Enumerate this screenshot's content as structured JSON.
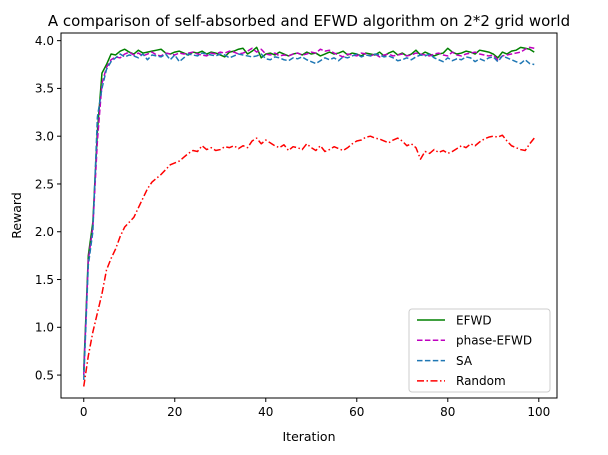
{
  "chart_data": {
    "type": "line",
    "title": "A comparison of self-absorbed and EFWD algorithm on 2*2 grid world",
    "xlabel": "Iteration",
    "ylabel": "Reward",
    "xlim": [
      -5,
      104
    ],
    "ylim": [
      0.26,
      4.08
    ],
    "xticks": [
      0,
      20,
      40,
      60,
      80,
      100
    ],
    "yticks": [
      0.5,
      1.0,
      1.5,
      2.0,
      2.5,
      3.0,
      3.5,
      4.0
    ],
    "xtick_labels": [
      "0",
      "20",
      "40",
      "60",
      "80",
      "100"
    ],
    "ytick_labels": [
      "0.5",
      "1.0",
      "1.5",
      "2.0",
      "2.5",
      "3.0",
      "3.5",
      "4.0"
    ],
    "grid": false,
    "legend_position": "lower-right",
    "x": [
      0,
      1,
      2,
      3,
      4,
      5,
      6,
      7,
      8,
      9,
      10,
      11,
      12,
      13,
      14,
      15,
      16,
      17,
      18,
      19,
      20,
      21,
      22,
      23,
      24,
      25,
      26,
      27,
      28,
      29,
      30,
      31,
      32,
      33,
      34,
      35,
      36,
      37,
      38,
      39,
      40,
      41,
      42,
      43,
      44,
      45,
      46,
      47,
      48,
      49,
      50,
      51,
      52,
      53,
      54,
      55,
      56,
      57,
      58,
      59,
      60,
      61,
      62,
      63,
      64,
      65,
      66,
      67,
      68,
      69,
      70,
      71,
      72,
      73,
      74,
      75,
      76,
      77,
      78,
      79,
      80,
      81,
      82,
      83,
      84,
      85,
      86,
      87,
      88,
      89,
      90,
      91,
      92,
      93,
      94,
      95,
      96,
      97,
      98,
      99
    ],
    "series": [
      {
        "name": "EFWD",
        "color": "#008000",
        "dash": "solid",
        "values": [
          0.55,
          1.75,
          2.1,
          3.05,
          3.66,
          3.75,
          3.86,
          3.85,
          3.89,
          3.91,
          3.88,
          3.86,
          3.9,
          3.87,
          3.88,
          3.89,
          3.9,
          3.91,
          3.87,
          3.86,
          3.88,
          3.89,
          3.87,
          3.85,
          3.88,
          3.87,
          3.89,
          3.86,
          3.88,
          3.87,
          3.85,
          3.83,
          3.88,
          3.89,
          3.91,
          3.92,
          3.86,
          3.89,
          3.93,
          3.82,
          3.86,
          3.87,
          3.85,
          3.88,
          3.86,
          3.84,
          3.86,
          3.87,
          3.85,
          3.88,
          3.86,
          3.87,
          3.84,
          3.86,
          3.88,
          3.86,
          3.87,
          3.89,
          3.85,
          3.87,
          3.86,
          3.84,
          3.87,
          3.86,
          3.85,
          3.88,
          3.84,
          3.87,
          3.89,
          3.85,
          3.87,
          3.84,
          3.86,
          3.9,
          3.85,
          3.88,
          3.86,
          3.84,
          3.86,
          3.87,
          3.92,
          3.88,
          3.86,
          3.87,
          3.89,
          3.88,
          3.86,
          3.9,
          3.89,
          3.88,
          3.86,
          3.82,
          3.88,
          3.86,
          3.89,
          3.9,
          3.93,
          3.92,
          3.91,
          3.88
        ]
      },
      {
        "name": "phase-EFWD",
        "color": "#bf00bf",
        "dash": "dashed",
        "values": [
          0.5,
          1.7,
          2.05,
          2.95,
          3.55,
          3.72,
          3.8,
          3.83,
          3.82,
          3.86,
          3.88,
          3.85,
          3.87,
          3.84,
          3.86,
          3.88,
          3.85,
          3.84,
          3.87,
          3.86,
          3.85,
          3.87,
          3.86,
          3.87,
          3.88,
          3.86,
          3.85,
          3.84,
          3.87,
          3.86,
          3.88,
          3.87,
          3.89,
          3.88,
          3.86,
          3.87,
          3.89,
          3.92,
          3.88,
          3.91,
          3.86,
          3.85,
          3.87,
          3.84,
          3.85,
          3.84,
          3.86,
          3.87,
          3.85,
          3.86,
          3.88,
          3.87,
          3.91,
          3.89,
          3.9,
          3.87,
          3.85,
          3.83,
          3.86,
          3.85,
          3.84,
          3.87,
          3.86,
          3.84,
          3.86,
          3.83,
          3.85,
          3.86,
          3.84,
          3.85,
          3.86,
          3.84,
          3.85,
          3.87,
          3.86,
          3.85,
          3.84,
          3.86,
          3.87,
          3.85,
          3.84,
          3.88,
          3.85,
          3.84,
          3.86,
          3.87,
          3.88,
          3.86,
          3.85,
          3.84,
          3.85,
          3.8,
          3.84,
          3.85,
          3.86,
          3.87,
          3.88,
          3.91,
          3.93,
          3.92
        ]
      },
      {
        "name": "SA",
        "color": "#1f77b4",
        "dash": "dashed",
        "values": [
          0.45,
          1.65,
          2.0,
          3.2,
          3.5,
          3.7,
          3.78,
          3.82,
          3.86,
          3.83,
          3.85,
          3.84,
          3.82,
          3.86,
          3.8,
          3.85,
          3.84,
          3.83,
          3.86,
          3.8,
          3.85,
          3.78,
          3.82,
          3.86,
          3.85,
          3.84,
          3.87,
          3.86,
          3.85,
          3.84,
          3.86,
          3.85,
          3.82,
          3.84,
          3.86,
          3.85,
          3.84,
          3.83,
          3.84,
          3.86,
          3.81,
          3.8,
          3.83,
          3.82,
          3.8,
          3.79,
          3.82,
          3.81,
          3.83,
          3.8,
          3.78,
          3.76,
          3.79,
          3.82,
          3.8,
          3.82,
          3.79,
          3.83,
          3.82,
          3.84,
          3.86,
          3.83,
          3.85,
          3.84,
          3.86,
          3.85,
          3.83,
          3.84,
          3.82,
          3.79,
          3.8,
          3.82,
          3.8,
          3.83,
          3.85,
          3.84,
          3.86,
          3.82,
          3.8,
          3.78,
          3.82,
          3.79,
          3.81,
          3.8,
          3.83,
          3.82,
          3.78,
          3.81,
          3.79,
          3.82,
          3.83,
          3.78,
          3.84,
          3.82,
          3.8,
          3.78,
          3.76,
          3.8,
          3.76,
          3.75
        ]
      },
      {
        "name": "Random",
        "color": "#ff0000",
        "dash": "dashdot",
        "values": [
          0.38,
          0.7,
          0.95,
          1.15,
          1.35,
          1.6,
          1.72,
          1.82,
          1.95,
          2.05,
          2.1,
          2.15,
          2.25,
          2.35,
          2.45,
          2.52,
          2.56,
          2.6,
          2.65,
          2.7,
          2.72,
          2.74,
          2.78,
          2.82,
          2.85,
          2.84,
          2.9,
          2.86,
          2.88,
          2.85,
          2.86,
          2.89,
          2.88,
          2.9,
          2.87,
          2.9,
          2.88,
          2.95,
          2.98,
          2.92,
          2.96,
          2.93,
          2.9,
          2.88,
          2.91,
          2.85,
          2.89,
          2.88,
          2.86,
          2.92,
          2.88,
          2.85,
          2.9,
          2.84,
          2.86,
          2.89,
          2.87,
          2.85,
          2.88,
          2.92,
          2.95,
          2.96,
          2.99,
          3.0,
          2.98,
          2.97,
          2.95,
          2.93,
          2.96,
          2.98,
          2.95,
          2.9,
          2.92,
          2.88,
          2.76,
          2.84,
          2.82,
          2.86,
          2.83,
          2.85,
          2.82,
          2.84,
          2.87,
          2.9,
          2.88,
          2.92,
          2.9,
          2.94,
          2.97,
          2.99,
          3.0,
          2.99,
          3.01,
          2.95,
          2.9,
          2.88,
          2.86,
          2.85,
          2.92,
          2.98
        ]
      }
    ]
  }
}
